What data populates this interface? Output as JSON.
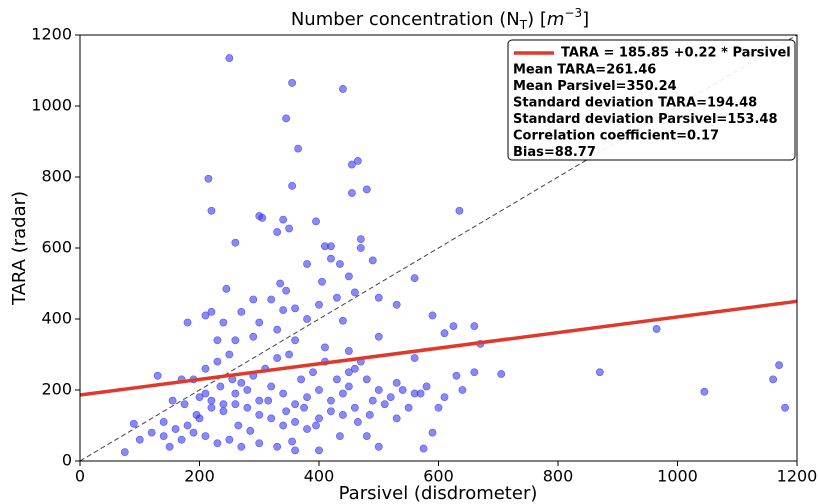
{
  "chart_data": {
    "type": "scatter",
    "title": [
      "Number concentration (N",
      "T",
      ") [",
      "m",
      "−3",
      "]"
    ],
    "x_label": "Parsivel (disdrometer)",
    "y_label": "TARA (radar)",
    "xlim": [
      0,
      1200
    ],
    "ylim": [
      0,
      1200
    ],
    "xticks": [
      0,
      200,
      400,
      600,
      800,
      1000,
      1200
    ],
    "yticks": [
      0,
      200,
      400,
      600,
      800,
      1000,
      1200
    ],
    "color": "#3b3bf0",
    "x": [
      250,
      355,
      440,
      345,
      365,
      465,
      455,
      480,
      215,
      355,
      455,
      220,
      300,
      305,
      340,
      395,
      350,
      635,
      330,
      260,
      410,
      420,
      470,
      470,
      420,
      490,
      380,
      435,
      560,
      450,
      405,
      335,
      245,
      345,
      460,
      290,
      320,
      430,
      500,
      180,
      220,
      210,
      270,
      360,
      340,
      400,
      530,
      590,
      625,
      660,
      610,
      965,
      440,
      380,
      240,
      300,
      500,
      330,
      290,
      260,
      230,
      360,
      410,
      450,
      560,
      670,
      660,
      705,
      870,
      1045,
      1160,
      1170,
      1180,
      640,
      630,
      610,
      580,
      560,
      530,
      500,
      480,
      460,
      450,
      440,
      420,
      400,
      380,
      360,
      340,
      320,
      300,
      280,
      260,
      240,
      220,
      200,
      180,
      160,
      140,
      120,
      100,
      75,
      90,
      130,
      170,
      190,
      210,
      230,
      250,
      270,
      290,
      310,
      330,
      350,
      370,
      390,
      410,
      430,
      450,
      470,
      490,
      510,
      530,
      550,
      570,
      590,
      600,
      400,
      360,
      330,
      300,
      270,
      250,
      230,
      210,
      190,
      170,
      150,
      140,
      200,
      210,
      220,
      240,
      260,
      280,
      300,
      320,
      340,
      360,
      380,
      400,
      420,
      440,
      460,
      480,
      500,
      520,
      540,
      575,
      355,
      285,
      265,
      195,
      175,
      155,
      235,
      255,
      315,
      345,
      375,
      395,
      435,
      465,
      485
    ],
    "values": [
      1135,
      1065,
      1048,
      965,
      880,
      845,
      835,
      765,
      795,
      775,
      755,
      705,
      690,
      685,
      680,
      675,
      655,
      705,
      645,
      615,
      605,
      605,
      625,
      600,
      570,
      565,
      555,
      555,
      515,
      520,
      505,
      500,
      485,
      480,
      475,
      455,
      455,
      460,
      460,
      390,
      420,
      410,
      420,
      430,
      425,
      440,
      440,
      410,
      380,
      380,
      360,
      372,
      395,
      400,
      390,
      390,
      350,
      370,
      350,
      340,
      340,
      340,
      320,
      310,
      290,
      330,
      250,
      245,
      250,
      195,
      230,
      270,
      150,
      200,
      240,
      180,
      210,
      190,
      220,
      200,
      230,
      260,
      210,
      190,
      170,
      200,
      180,
      160,
      190,
      210,
      170,
      150,
      160,
      140,
      150,
      120,
      100,
      90,
      110,
      80,
      60,
      25,
      105,
      240,
      230,
      230,
      260,
      280,
      300,
      220,
      240,
      260,
      290,
      300,
      230,
      250,
      280,
      230,
      250,
      280,
      170,
      160,
      120,
      150,
      190,
      80,
      150,
      30,
      30,
      40,
      50,
      40,
      60,
      50,
      70,
      80,
      60,
      40,
      70,
      180,
      190,
      170,
      160,
      190,
      200,
      130,
      120,
      100,
      110,
      90,
      120,
      140,
      130,
      150,
      70,
      40,
      180,
      200,
      35,
      55,
      85,
      100,
      130,
      160,
      170,
      210,
      230,
      170,
      140,
      150,
      100,
      70,
      110,
      130
    ],
    "fit": {
      "label": "TARA = 185.85 +0.22 * Parsivel",
      "intercept": 185.85,
      "slope": 0.22,
      "color": "#e0392b"
    },
    "stats": [
      "Mean TARA=261.46",
      "Mean Parsivel=350.24",
      "Standard deviation TARA=194.48",
      "Standard deviation Parsivel=153.48",
      "Correlation coefficient=0.17",
      "Bias=88.77"
    ]
  }
}
